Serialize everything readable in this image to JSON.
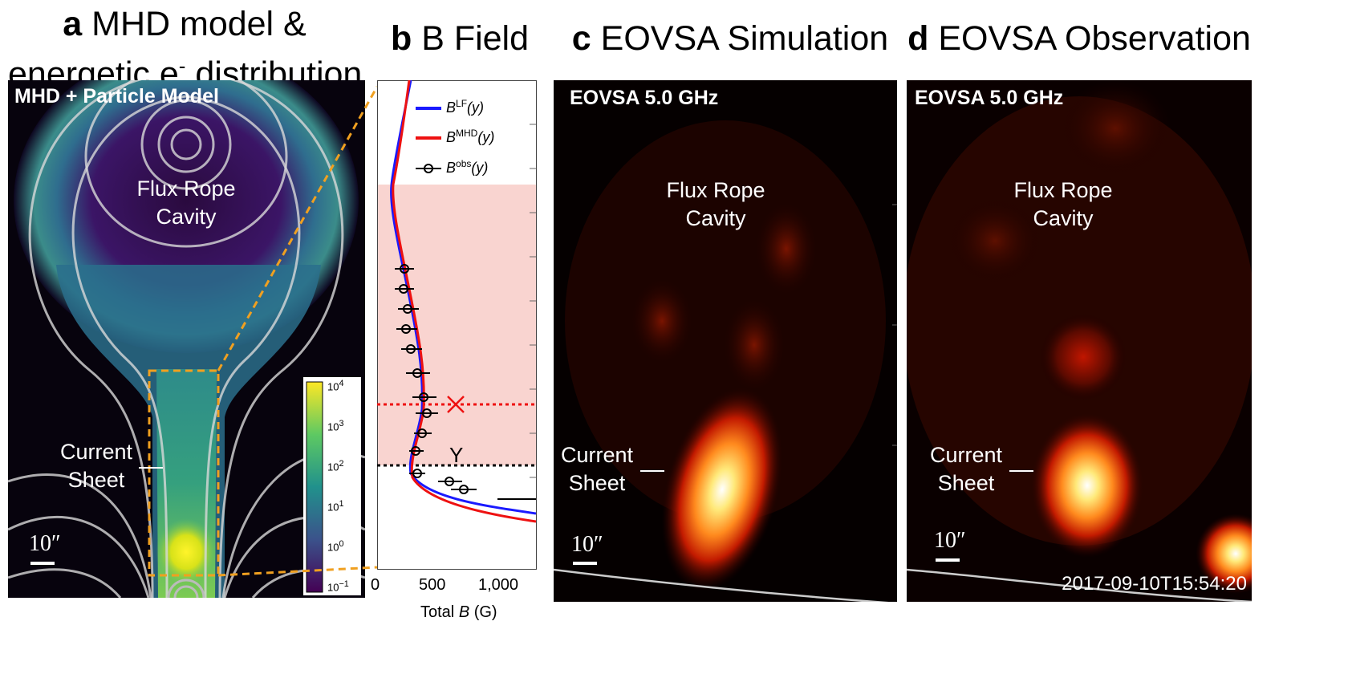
{
  "panels": {
    "a": {
      "letter": "a",
      "title_line1": "MHD model &",
      "title_line2": "energetic e",
      "title_sup": "-",
      "title_tail": " distribution",
      "inner_label": "MHD + Particle Model",
      "flux_rope_line1": "Flux Rope",
      "flux_rope_line2": "Cavity",
      "current_sheet_line1": "Current",
      "current_sheet_line2": "Sheet",
      "scale": "10″",
      "colorbar_ticks": [
        "10",
        "10",
        "10",
        "10",
        "10",
        "10"
      ],
      "colorbar_exps": [
        "4",
        "3",
        "2",
        "1",
        "0",
        "−1"
      ]
    },
    "b": {
      "letter": "b",
      "title": "B Field",
      "legend": [
        {
          "base": "B",
          "sup": "LF",
          "arg": "(y)",
          "color": "#1a1aff"
        },
        {
          "base": "B",
          "sup": "MHD",
          "arg": "(y)",
          "color": "#ee1111"
        },
        {
          "base": "B",
          "sup": "obs",
          "arg": "(y)",
          "color": "#000000"
        }
      ],
      "xticks": [
        "0",
        "500",
        "1,000"
      ],
      "xlabel_pre": "Total ",
      "xlabel_var": "B",
      "xlabel_post": " (G)",
      "y_marker": "Y"
    },
    "c": {
      "letter": "c",
      "title": "EOVSA Simulation",
      "inner_label": "EOVSA 5.0 GHz",
      "flux_rope_line1": "Flux Rope",
      "flux_rope_line2": "Cavity",
      "current_sheet_line1": "Current",
      "current_sheet_line2": "Sheet",
      "scale": "10″"
    },
    "d": {
      "letter": "d",
      "title": "EOVSA Observation",
      "inner_label": "EOVSA 5.0 GHz",
      "flux_rope_line1": "Flux Rope",
      "flux_rope_line2": "Cavity",
      "current_sheet_line1": "Current",
      "current_sheet_line2": "Sheet",
      "scale": "10″",
      "timestamp": "2017-09-10T15:54:20"
    }
  },
  "colors": {
    "orange_dash": "#f0a020",
    "pink_shade": "#f9d4d0",
    "model_bg": "#000000"
  }
}
